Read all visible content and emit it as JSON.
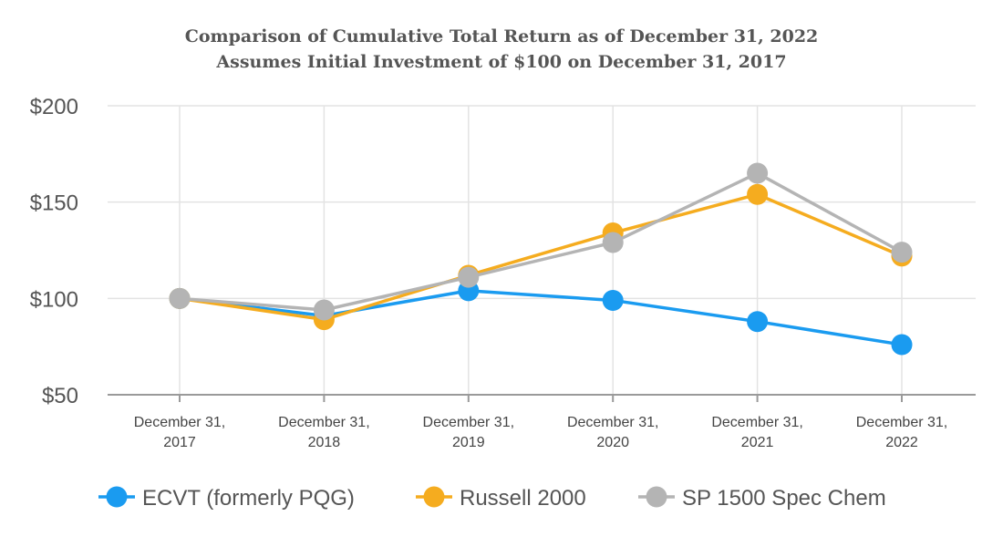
{
  "chart_data": {
    "type": "line",
    "title": "Comparison of Cumulative Total Return as of December 31, 2022",
    "subtitle": "Assumes Initial Investment of $100 on December 31, 2017",
    "categories": [
      [
        "December 31,",
        "2017"
      ],
      [
        "December 31,",
        "2018"
      ],
      [
        "December 31,",
        "2019"
      ],
      [
        "December 31,",
        "2020"
      ],
      [
        "December 31,",
        "2021"
      ],
      [
        "December 31,",
        "2022"
      ]
    ],
    "ylim": [
      50,
      200
    ],
    "yticks": [
      50,
      100,
      150,
      200
    ],
    "ytick_labels": [
      "$50",
      "$100",
      "$150",
      "$200"
    ],
    "grid": true,
    "legend_position": "bottom",
    "series": [
      {
        "name": "ECVT (formerly PQG)",
        "color": "#1a9bf0",
        "values": [
          100,
          91,
          104,
          99,
          88,
          76
        ]
      },
      {
        "name": "Russell 2000",
        "color": "#f5ac1f",
        "values": [
          100,
          89,
          112,
          134,
          154,
          122
        ]
      },
      {
        "name": "SP 1500 Spec Chem",
        "color": "#b4b4b4",
        "values": [
          100,
          94,
          111,
          129,
          165,
          124
        ]
      }
    ]
  }
}
